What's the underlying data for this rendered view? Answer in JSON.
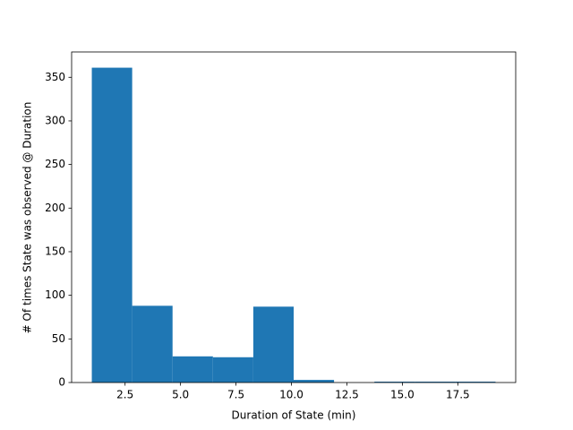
{
  "chart_data": {
    "type": "histogram",
    "x_label": "Duration of State (min)",
    "y_label": "# Of times State was observed @ Duration",
    "bins": [
      1.0,
      2.82,
      4.64,
      6.46,
      8.28,
      10.1,
      11.92,
      13.74,
      15.56,
      17.38,
      19.2
    ],
    "values": [
      361,
      88,
      30,
      29,
      87,
      3,
      0,
      1,
      1,
      1
    ],
    "color": "#1f77b4",
    "xlim": [
      0.09,
      20.11
    ],
    "ylim": [
      0,
      379.05
    ],
    "xticks": [
      2.5,
      {
        "value": 5,
        "label": "5.0"
      },
      7.5,
      {
        "value": 10,
        "label": "10.0"
      },
      {
        "value": 12.5,
        "label": "12.5"
      },
      {
        "value": 15,
        "label": "15.0"
      },
      {
        "value": 17.5,
        "label": "17.5"
      }
    ],
    "yticks": [
      0,
      50,
      100,
      150,
      200,
      250,
      300,
      350
    ]
  }
}
